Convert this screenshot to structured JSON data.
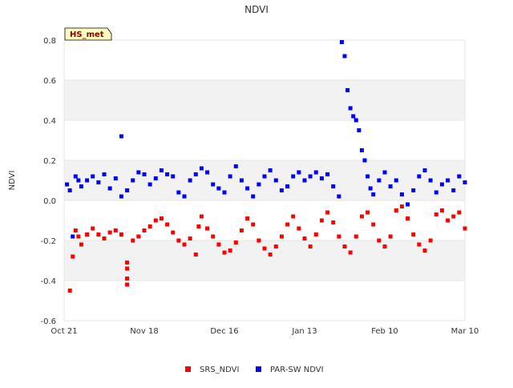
{
  "chart_data": {
    "type": "scatter",
    "title": "NDVI",
    "ylabel": "NDVI",
    "xlabel": "",
    "site_badge": "HS_met",
    "x_ticks": [
      "Oct 21",
      "Nov 18",
      "Dec 16",
      "Jan 13",
      "Feb 10",
      "Mar 10"
    ],
    "x_tick_days": [
      0,
      28,
      56,
      84,
      112,
      140
    ],
    "xlim_days": [
      0,
      140
    ],
    "ylim": [
      -0.6,
      0.8
    ],
    "y_ticks": [
      "-0.6",
      "-0.4",
      "-0.2",
      "0.0",
      "0.2",
      "0.4",
      "0.6",
      "0.8"
    ],
    "grid": "horizontal bands",
    "legend_position": "bottom-center",
    "series": [
      {
        "name": "SRS_NDVI",
        "color": "#ff0000",
        "x_days": [
          2,
          3,
          4,
          5,
          6,
          8,
          10,
          12,
          14,
          16,
          18,
          20,
          22,
          22,
          22,
          22,
          24,
          26,
          28,
          30,
          32,
          34,
          36,
          38,
          40,
          42,
          44,
          46,
          47,
          48,
          50,
          52,
          54,
          56,
          58,
          60,
          62,
          64,
          66,
          68,
          70,
          72,
          74,
          76,
          78,
          80,
          82,
          84,
          86,
          88,
          90,
          92,
          94,
          96,
          98,
          100,
          102,
          104,
          106,
          108,
          110,
          112,
          114,
          116,
          118,
          120,
          122,
          124,
          126,
          128,
          130,
          132,
          134,
          136,
          138,
          140
        ],
        "y": [
          -0.45,
          -0.28,
          -0.15,
          -0.18,
          -0.22,
          -0.17,
          -0.14,
          -0.17,
          -0.19,
          -0.16,
          -0.15,
          -0.17,
          -0.31,
          -0.34,
          -0.39,
          -0.42,
          -0.2,
          -0.18,
          -0.15,
          -0.13,
          -0.1,
          -0.09,
          -0.12,
          -0.16,
          -0.2,
          -0.22,
          -0.19,
          -0.27,
          -0.13,
          -0.08,
          -0.14,
          -0.18,
          -0.22,
          -0.26,
          -0.25,
          -0.21,
          -0.15,
          -0.09,
          -0.12,
          -0.2,
          -0.24,
          -0.27,
          -0.23,
          -0.18,
          -0.12,
          -0.08,
          -0.14,
          -0.19,
          -0.23,
          -0.17,
          -0.1,
          -0.06,
          -0.11,
          -0.18,
          -0.23,
          -0.26,
          -0.18,
          -0.08,
          -0.06,
          -0.12,
          -0.2,
          -0.23,
          -0.18,
          -0.05,
          -0.03,
          -0.09,
          -0.17,
          -0.22,
          -0.25,
          -0.2,
          -0.07,
          -0.05,
          -0.1,
          -0.08,
          -0.06,
          -0.14
        ]
      },
      {
        "name": "PAR-SW NDVI",
        "color": "#0000ff",
        "x_days": [
          1,
          2,
          3,
          4,
          5,
          6,
          8,
          10,
          12,
          14,
          16,
          18,
          20,
          20,
          22,
          24,
          26,
          28,
          30,
          32,
          34,
          36,
          38,
          40,
          42,
          44,
          46,
          48,
          50,
          52,
          54,
          56,
          58,
          60,
          62,
          64,
          66,
          68,
          70,
          72,
          74,
          76,
          78,
          80,
          82,
          84,
          86,
          88,
          90,
          92,
          94,
          96,
          97,
          98,
          99,
          100,
          101,
          102,
          103,
          104,
          105,
          106,
          107,
          108,
          110,
          112,
          114,
          116,
          118,
          120,
          122,
          124,
          126,
          128,
          130,
          132,
          134,
          136,
          138,
          140
        ],
        "y": [
          0.08,
          0.05,
          -0.18,
          0.12,
          0.1,
          0.07,
          0.1,
          0.12,
          0.09,
          0.13,
          0.06,
          0.11,
          0.32,
          0.02,
          0.05,
          0.1,
          0.14,
          0.13,
          0.08,
          0.11,
          0.15,
          0.13,
          0.12,
          0.04,
          0.02,
          0.1,
          0.13,
          0.16,
          0.14,
          0.08,
          0.06,
          0.04,
          0.12,
          0.17,
          0.1,
          0.06,
          0.02,
          0.08,
          0.12,
          0.15,
          0.1,
          0.05,
          0.07,
          0.12,
          0.14,
          0.1,
          0.12,
          0.14,
          0.11,
          0.13,
          0.07,
          0.02,
          0.79,
          0.72,
          0.55,
          0.46,
          0.42,
          0.4,
          0.35,
          0.25,
          0.2,
          0.12,
          0.06,
          0.03,
          0.1,
          0.14,
          0.07,
          0.1,
          0.03,
          -0.02,
          0.05,
          0.12,
          0.15,
          0.1,
          0.04,
          0.08,
          0.1,
          0.05,
          0.12,
          0.09
        ]
      }
    ]
  }
}
